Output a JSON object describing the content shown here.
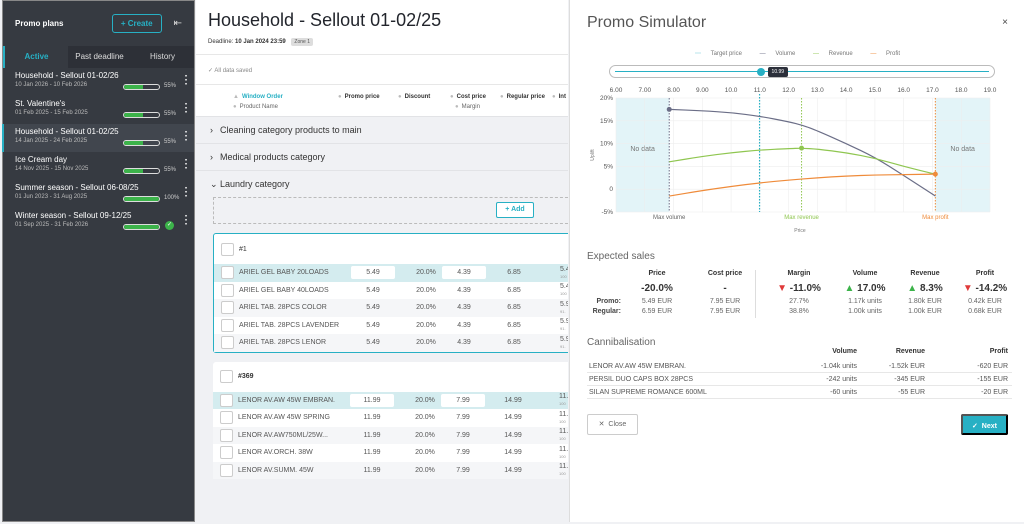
{
  "sidebar": {
    "title": "Promo plans",
    "create_label": "+ Create",
    "tabs": [
      {
        "label": "Active"
      },
      {
        "label": "Past deadline"
      },
      {
        "label": "History"
      }
    ],
    "plans": [
      {
        "name": "Household - Sellout 01-02/26",
        "dates": "10 Jan 2026 - 10 Feb 2026",
        "progress": 55,
        "pct_label": "55%",
        "done": false
      },
      {
        "name": "St. Valentine's",
        "dates": "01 Feb 2025 - 15 Feb 2025",
        "progress": 55,
        "pct_label": "55%",
        "done": false
      },
      {
        "name": "Household - Sellout 01-02/25",
        "dates": "14 Jan 2025 - 24 Feb 2025",
        "progress": 55,
        "pct_label": "55%",
        "done": false
      },
      {
        "name": "Ice Cream day",
        "dates": "14 Nov 2025 - 15 Nov 2025",
        "progress": 55,
        "pct_label": "55%",
        "done": false
      },
      {
        "name": "Summer season - Sellout 06-08/25",
        "dates": "01 Jun 2023 - 31 Aug 2025",
        "progress": 100,
        "pct_label": "100%",
        "done": false
      },
      {
        "name": "Winter season - Sellout 09-12/25",
        "dates": "01 Sep 2025 - 31 Feb 2026",
        "progress": 100,
        "pct_label": "",
        "done": true
      }
    ]
  },
  "main": {
    "title": "Household - Sellout 01-02/25",
    "deadline_label": "Deadline:",
    "deadline_value": "10 Jan 2024 23:59",
    "zone": "Zone 1",
    "saved_status": "All data saved",
    "columns": {
      "window_order": "Window Order",
      "product_name": "Product Name",
      "promo_price": "Promo price",
      "discount": "Discount",
      "cost_price": "Cost price",
      "margin": "Margin",
      "regular_price": "Regular price",
      "int": "Int"
    },
    "categories": [
      {
        "label": "Cleaning category products to main"
      },
      {
        "label": "Medical products category"
      },
      {
        "label": "Laundry category"
      }
    ],
    "add_label": "+ Add",
    "groups": [
      {
        "id": "#1",
        "rows": [
          {
            "name": "ARIEL GEL BABY 20LOADS",
            "promo": "5.49",
            "discount": "20.0%",
            "cost": "4.39",
            "regular": "6.85",
            "cut": "5.4",
            "cut_sub": "100"
          },
          {
            "name": "ARIEL GEL BABY 40LOADS",
            "promo": "5.49",
            "discount": "20.0%",
            "cost": "4.39",
            "regular": "6.85",
            "cut": "5.4",
            "cut_sub": "100"
          },
          {
            "name": "ARIEL TAB. 28PCS COLOR",
            "promo": "5.49",
            "discount": "20.0%",
            "cost": "4.39",
            "regular": "6.85",
            "cut": "5.9",
            "cut_sub": "91."
          },
          {
            "name": "ARIEL TAB. 28PCS LAVENDER",
            "promo": "5.49",
            "discount": "20.0%",
            "cost": "4.39",
            "regular": "6.85",
            "cut": "5.9",
            "cut_sub": "91."
          },
          {
            "name": "ARIEL TAB. 28PCS LENOR",
            "promo": "5.49",
            "discount": "20.0%",
            "cost": "4.39",
            "regular": "6.85",
            "cut": "5.9",
            "cut_sub": "91."
          }
        ]
      },
      {
        "id": "#369",
        "rows": [
          {
            "name": "LENOR AV.AW 45W EMBRAN.",
            "promo": "11.99",
            "discount": "20.0%",
            "cost": "7.99",
            "regular": "14.99",
            "cut": "11.",
            "cut_sub": "100"
          },
          {
            "name": "LENOR AV.AW 45W SPRING",
            "promo": "11.99",
            "discount": "20.0%",
            "cost": "7.99",
            "regular": "14.99",
            "cut": "11.",
            "cut_sub": "100"
          },
          {
            "name": "LENOR AV.AW750ML/25W...",
            "promo": "11.99",
            "discount": "20.0%",
            "cost": "7.99",
            "regular": "14.99",
            "cut": "11.",
            "cut_sub": "100"
          },
          {
            "name": "LENOR AV.ORCH. 38W",
            "promo": "11.99",
            "discount": "20.0%",
            "cost": "7.99",
            "regular": "14.99",
            "cut": "11.",
            "cut_sub": "100"
          },
          {
            "name": "LENOR AV.SUMM. 45W",
            "promo": "11.99",
            "discount": "20.0%",
            "cost": "7.99",
            "regular": "14.99",
            "cut": "11.",
            "cut_sub": "100"
          }
        ]
      }
    ]
  },
  "simulator": {
    "title": "Promo Simulator",
    "close_icon": "×",
    "legend": [
      "Target price",
      "Volume",
      "Revenue",
      "Profit"
    ],
    "slider_value": "10.99",
    "expected_sales": {
      "title": "Expected sales",
      "columns": [
        {
          "label": "Price",
          "big": "-20.0%",
          "trend": "",
          "promo": "5.49 EUR",
          "regular": "6.59 EUR"
        },
        {
          "label": "Cost price",
          "big": "-",
          "trend": "",
          "promo": "7.95 EUR",
          "regular": "7.95 EUR"
        },
        {
          "label": "Margin",
          "big": "-11.0%",
          "trend": "down",
          "promo": "27.7%",
          "regular": "38.8%"
        },
        {
          "label": "Volume",
          "big": "17.0%",
          "trend": "up",
          "promo": "1.17k units",
          "regular": "1.00k units"
        },
        {
          "label": "Revenue",
          "big": "8.3%",
          "trend": "up",
          "promo": "1.80k EUR",
          "regular": "1.00k EUR"
        },
        {
          "label": "Profit",
          "big": "-14.2%",
          "trend": "down",
          "promo": "0.42k EUR",
          "regular": "0.68k EUR"
        }
      ],
      "promo_label": "Promo:",
      "regular_label": "Regular:"
    },
    "cannibalisation": {
      "title": "Cannibalisation",
      "headers": [
        "Volume",
        "Revenue",
        "Profit"
      ],
      "rows": [
        {
          "name": "LENOR AV.AW 45W EMBRAN.",
          "volume": "-1.04k units",
          "revenue": "-1.52k EUR",
          "profit": "-620 EUR"
        },
        {
          "name": "PERSIL DUO CAPS BOX 28PCS",
          "volume": "-242 units",
          "revenue": "-345 EUR",
          "profit": "-155 EUR"
        },
        {
          "name": "SILAN SUPREME ROMANCE 600ML",
          "volume": "-60 units",
          "revenue": "-55 EUR",
          "profit": "-20 EUR"
        }
      ]
    },
    "close_label": "Close",
    "next_label": "Next"
  },
  "colors": {
    "accent": "#27b0c4",
    "volume": "#6b6e87",
    "revenue": "#8fc650",
    "profit": "#ef8b3a",
    "no_data": "#e3f4f8"
  },
  "chart_data": {
    "type": "line",
    "xlabel": "Price",
    "ylabel": "Uplift",
    "xlim": [
      6.0,
      19.0
    ],
    "ylim": [
      -5,
      20
    ],
    "x_ticks": [
      "6.00",
      "7.00",
      "8.00",
      "9.00",
      "10.0",
      "11.0",
      "12.0",
      "13.0",
      "14.0",
      "15.0",
      "16.0",
      "17.0",
      "18.0",
      "19.0"
    ],
    "y_ticks": [
      "20%",
      "15%",
      "10%",
      "5%",
      "0",
      "-5%"
    ],
    "no_data_label": "No data",
    "no_data_ranges": [
      [
        6.0,
        7.85
      ],
      [
        17.1,
        19.0
      ]
    ],
    "target_price": 10.99,
    "markers": [
      {
        "label": "Max volume",
        "x": 7.85,
        "series": "Volume"
      },
      {
        "label": "Max revenue",
        "x": 12.45,
        "series": "Revenue"
      },
      {
        "label": "Max profit",
        "x": 17.1,
        "series": "Profit"
      }
    ],
    "series": [
      {
        "name": "Volume",
        "x": [
          7.85,
          9.0,
          10.0,
          11.0,
          12.0,
          12.5,
          13.0,
          14.0,
          15.0,
          16.0,
          17.1
        ],
        "y": [
          17.5,
          17.2,
          16.8,
          16.0,
          14.8,
          14.0,
          12.8,
          10.0,
          7.0,
          3.0,
          -1.5
        ]
      },
      {
        "name": "Revenue",
        "x": [
          7.85,
          9.0,
          10.0,
          11.0,
          12.0,
          12.45,
          13.0,
          14.0,
          15.0,
          16.0,
          17.1
        ],
        "y": [
          6.0,
          7.2,
          8.0,
          8.6,
          8.9,
          9.0,
          8.8,
          8.0,
          6.8,
          5.0,
          3.3
        ]
      },
      {
        "name": "Profit",
        "x": [
          7.85,
          9.0,
          10.0,
          11.0,
          12.0,
          13.0,
          14.0,
          15.0,
          16.0,
          17.1
        ],
        "y": [
          -1.5,
          -0.3,
          0.6,
          1.4,
          2.0,
          2.5,
          2.9,
          3.1,
          3.2,
          3.3
        ]
      }
    ]
  }
}
